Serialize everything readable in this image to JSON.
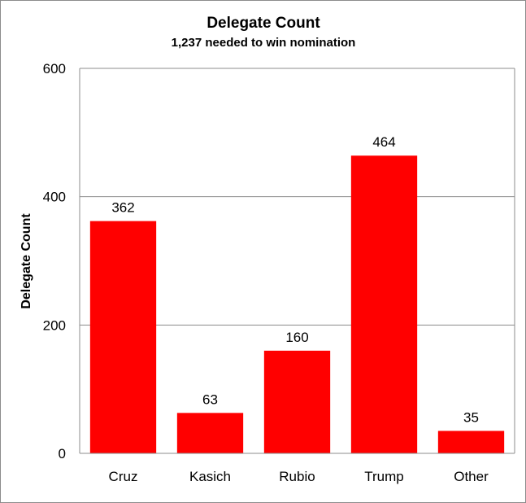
{
  "chart_data": {
    "type": "bar",
    "title": "Delegate Count",
    "subtitle": "1,237 needed to win nomination",
    "xlabel": "",
    "ylabel": "Delegate Count",
    "categories": [
      "Cruz",
      "Kasich",
      "Rubio",
      "Trump",
      "Other"
    ],
    "values": [
      362,
      63,
      160,
      464,
      35
    ],
    "data_labels": [
      "362",
      "63",
      "160",
      "464",
      "35"
    ],
    "ylim": [
      0,
      600
    ],
    "yticks": [
      0,
      200,
      400,
      600
    ],
    "ytick_labels": [
      "0",
      "200",
      "400",
      "600"
    ],
    "bar_color": "#ff0000",
    "grid": true,
    "legend": false
  }
}
